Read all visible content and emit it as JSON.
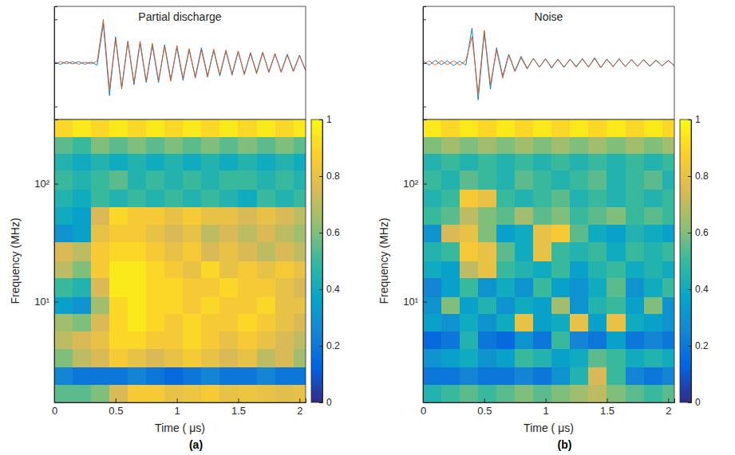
{
  "chart_data": [
    {
      "type": "scalogram",
      "label": "(a)",
      "waveform": {
        "type": "line",
        "title": "Partial discharge",
        "x": [
          0,
          0.05,
          0.1,
          0.15,
          0.2,
          0.25,
          0.3,
          0.35,
          0.4,
          0.45,
          0.5,
          0.55,
          0.6,
          0.65,
          0.7,
          0.75,
          0.8,
          0.85,
          0.9,
          0.95,
          1,
          1.05,
          1.1,
          1.15,
          1.2,
          1.25,
          1.3,
          1.35,
          1.4,
          1.45,
          1.5,
          1.55,
          1.6,
          1.65,
          1.7,
          1.75,
          1.8,
          1.85,
          1.9,
          1.95,
          2,
          2.05
        ],
        "xlim": [
          0,
          2.05
        ],
        "ylim": [
          -1.3,
          1.3
        ],
        "yticks": [
          -1,
          0,
          1
        ],
        "tick_labels": false,
        "series": [
          {
            "color": "#0072bd",
            "values": [
              0.02,
              -0.03,
              0.03,
              -0.02,
              0.03,
              -0.03,
              0.02,
              -0.05,
              0.9,
              -0.75,
              0.6,
              -0.55,
              0.5,
              -0.5,
              0.45,
              -0.45,
              0.4,
              -0.45,
              0.42,
              -0.38,
              0.35,
              -0.4,
              0.3,
              -0.32,
              0.35,
              -0.3,
              0.28,
              -0.3,
              0.27,
              -0.28,
              0.25,
              -0.25,
              0.24,
              -0.22,
              0.25,
              -0.22,
              0.2,
              -0.2,
              0.2,
              -0.18,
              0.18,
              -0.17
            ]
          },
          {
            "color": "#d95319",
            "values": [
              -0.02,
              0.03,
              -0.02,
              0.03,
              -0.03,
              0.02,
              -0.02,
              0.04,
              1.0,
              -0.6,
              0.55,
              -0.6,
              0.48,
              -0.45,
              0.5,
              -0.42,
              0.45,
              -0.4,
              0.38,
              -0.42,
              0.4,
              -0.35,
              0.33,
              -0.35,
              0.3,
              -0.33,
              0.32,
              -0.27,
              0.3,
              -0.25,
              0.28,
              -0.27,
              0.22,
              -0.25,
              0.23,
              -0.2,
              0.22,
              -0.22,
              0.18,
              -0.2,
              0.17,
              -0.18
            ]
          }
        ]
      },
      "heatmap": {
        "type": "heatmap",
        "xlabel": "Time ( μs)",
        "ylabel": "Frequency (MHz)",
        "xlim": [
          0,
          2.05
        ],
        "xticks": [
          0,
          0.5,
          1,
          1.5,
          2
        ],
        "ylim": [
          1.4,
          350
        ],
        "yticks": [
          {
            "value": 10,
            "label": "10¹"
          },
          {
            "value": 100,
            "label": "10²"
          }
        ],
        "log": "y",
        "time_edges": [
          0,
          0.15,
          0.3,
          0.45,
          0.6,
          0.75,
          0.9,
          1.05,
          1.2,
          1.35,
          1.5,
          1.65,
          1.8,
          1.95,
          2.05
        ],
        "frequency_edges": [
          1.4,
          2,
          2.8,
          4,
          5.6,
          8,
          11,
          16,
          22,
          32,
          45,
          64,
          90,
          130,
          180,
          250,
          350
        ],
        "cells": [
          [
            0.55,
            0.55,
            0.6,
            0.75,
            0.85,
            0.85,
            0.8,
            0.82,
            0.85,
            0.8,
            0.82,
            0.8,
            0.78,
            0.8
          ],
          [
            0.25,
            0.2,
            0.2,
            0.2,
            0.25,
            0.2,
            0.15,
            0.2,
            0.25,
            0.2,
            0.2,
            0.25,
            0.2,
            0.2
          ],
          [
            0.6,
            0.7,
            0.75,
            0.85,
            0.8,
            0.75,
            0.8,
            0.85,
            0.8,
            0.75,
            0.8,
            0.7,
            0.75,
            0.65
          ],
          [
            0.7,
            0.75,
            0.8,
            0.9,
            0.9,
            0.85,
            0.85,
            0.9,
            0.85,
            0.8,
            0.85,
            0.8,
            0.75,
            0.7
          ],
          [
            0.65,
            0.6,
            0.75,
            0.9,
            0.95,
            0.9,
            0.85,
            0.9,
            0.85,
            0.85,
            0.9,
            0.85,
            0.8,
            0.75
          ],
          [
            0.35,
            0.3,
            0.65,
            0.9,
            0.95,
            0.9,
            0.9,
            0.85,
            0.9,
            0.85,
            0.85,
            0.9,
            0.8,
            0.8
          ],
          [
            0.5,
            0.45,
            0.75,
            0.95,
            0.95,
            0.9,
            0.9,
            0.85,
            0.85,
            0.9,
            0.85,
            0.85,
            0.8,
            0.75
          ],
          [
            0.7,
            0.6,
            0.85,
            0.95,
            0.95,
            0.9,
            0.85,
            0.8,
            0.9,
            0.8,
            0.85,
            0.8,
            0.85,
            0.8
          ],
          [
            0.75,
            0.7,
            0.85,
            0.9,
            0.9,
            0.85,
            0.8,
            0.85,
            0.75,
            0.8,
            0.75,
            0.7,
            0.75,
            0.7
          ],
          [
            0.3,
            0.35,
            0.8,
            0.85,
            0.85,
            0.8,
            0.75,
            0.8,
            0.7,
            0.75,
            0.7,
            0.75,
            0.7,
            0.65
          ],
          [
            0.4,
            0.35,
            0.75,
            0.9,
            0.85,
            0.85,
            0.8,
            0.85,
            0.8,
            0.8,
            0.75,
            0.8,
            0.75,
            0.7
          ],
          [
            0.45,
            0.4,
            0.5,
            0.45,
            0.5,
            0.45,
            0.5,
            0.45,
            0.5,
            0.45,
            0.4,
            0.5,
            0.45,
            0.5
          ],
          [
            0.5,
            0.45,
            0.5,
            0.55,
            0.45,
            0.5,
            0.45,
            0.5,
            0.45,
            0.5,
            0.5,
            0.45,
            0.5,
            0.45
          ],
          [
            0.45,
            0.4,
            0.45,
            0.4,
            0.45,
            0.4,
            0.45,
            0.4,
            0.45,
            0.4,
            0.45,
            0.4,
            0.45,
            0.4
          ],
          [
            0.55,
            0.5,
            0.6,
            0.55,
            0.6,
            0.55,
            0.6,
            0.55,
            0.6,
            0.55,
            0.6,
            0.55,
            0.6,
            0.55
          ],
          [
            0.9,
            0.95,
            0.9,
            0.95,
            0.9,
            0.95,
            0.9,
            0.95,
            0.9,
            0.95,
            0.9,
            0.95,
            0.9,
            0.95
          ]
        ],
        "colorbar": {
          "range": [
            0,
            1
          ],
          "ticks": [
            0,
            0.2,
            0.4,
            0.6,
            0.8,
            1
          ]
        }
      }
    },
    {
      "type": "scalogram",
      "label": "(b)",
      "waveform": {
        "type": "line",
        "title": "Noise",
        "x": [
          0,
          0.05,
          0.1,
          0.15,
          0.2,
          0.25,
          0.3,
          0.35,
          0.4,
          0.45,
          0.5,
          0.55,
          0.6,
          0.65,
          0.7,
          0.75,
          0.8,
          0.85,
          0.9,
          0.95,
          1,
          1.05,
          1.1,
          1.15,
          1.2,
          1.25,
          1.3,
          1.35,
          1.4,
          1.45,
          1.5,
          1.55,
          1.6,
          1.65,
          1.7,
          1.75,
          1.8,
          1.85,
          1.9,
          1.95,
          2,
          2.05
        ],
        "xlim": [
          0,
          2.05
        ],
        "ylim": [
          -1.3,
          1.3
        ],
        "yticks": [
          -1,
          0,
          1
        ],
        "tick_labels": false,
        "series": [
          {
            "color": "#0072bd",
            "values": [
              0.05,
              -0.05,
              0.06,
              -0.04,
              0.05,
              -0.06,
              0.04,
              -0.05,
              0.8,
              -0.85,
              0.7,
              -0.6,
              0.35,
              -0.3,
              0.2,
              -0.18,
              0.15,
              -0.12,
              0.1,
              -0.1,
              0.09,
              -0.12,
              0.08,
              -0.1,
              0.09,
              -0.08,
              0.1,
              -0.09,
              0.12,
              -0.1,
              0.09,
              -0.08,
              0.1,
              -0.09,
              0.08,
              -0.07,
              0.07,
              -0.08,
              0.06,
              -0.07,
              0.06,
              -0.06
            ]
          },
          {
            "color": "#d95319",
            "values": [
              -0.04,
              0.05,
              -0.05,
              0.05,
              -0.04,
              0.05,
              -0.05,
              0.06,
              0.6,
              -0.7,
              0.75,
              -0.5,
              0.3,
              -0.35,
              0.18,
              -0.2,
              0.12,
              -0.14,
              0.11,
              -0.09,
              0.1,
              -0.1,
              0.09,
              -0.09,
              0.08,
              -0.1,
              0.09,
              -0.1,
              0.1,
              -0.11,
              0.08,
              -0.09,
              0.09,
              -0.08,
              0.07,
              -0.08,
              0.08,
              -0.07,
              0.07,
              -0.06,
              0.05,
              -0.06
            ]
          }
        ]
      },
      "heatmap": {
        "type": "heatmap",
        "xlabel": "Time ( μs)",
        "ylabel": "Frequency (MHz)",
        "xlim": [
          0,
          2.05
        ],
        "xticks": [
          0,
          0.5,
          1,
          1.5,
          2
        ],
        "ylim": [
          1.4,
          350
        ],
        "yticks": [
          {
            "value": 10,
            "label": "10¹"
          },
          {
            "value": 100,
            "label": "10²"
          }
        ],
        "log": "y",
        "time_edges": [
          0,
          0.15,
          0.3,
          0.45,
          0.6,
          0.75,
          0.9,
          1.05,
          1.2,
          1.35,
          1.5,
          1.65,
          1.8,
          1.95,
          2.05
        ],
        "frequency_edges": [
          1.4,
          2,
          2.8,
          4,
          5.6,
          8,
          11,
          16,
          22,
          32,
          45,
          64,
          90,
          130,
          180,
          250,
          350
        ],
        "cells": [
          [
            0.45,
            0.5,
            0.55,
            0.5,
            0.55,
            0.6,
            0.55,
            0.6,
            0.65,
            0.7,
            0.6,
            0.55,
            0.5,
            0.55
          ],
          [
            0.2,
            0.2,
            0.25,
            0.2,
            0.2,
            0.25,
            0.2,
            0.3,
            0.45,
            0.75,
            0.5,
            0.25,
            0.2,
            0.25
          ],
          [
            0.3,
            0.35,
            0.4,
            0.3,
            0.35,
            0.5,
            0.45,
            0.35,
            0.4,
            0.55,
            0.5,
            0.4,
            0.45,
            0.4
          ],
          [
            0.15,
            0.2,
            0.45,
            0.2,
            0.15,
            0.3,
            0.2,
            0.5,
            0.25,
            0.2,
            0.35,
            0.2,
            0.25,
            0.2
          ],
          [
            0.35,
            0.3,
            0.4,
            0.3,
            0.4,
            0.8,
            0.35,
            0.4,
            0.8,
            0.35,
            0.8,
            0.4,
            0.35,
            0.3
          ],
          [
            0.3,
            0.6,
            0.35,
            0.45,
            0.3,
            0.4,
            0.35,
            0.65,
            0.3,
            0.45,
            0.5,
            0.35,
            0.6,
            0.3
          ],
          [
            0.25,
            0.35,
            0.5,
            0.3,
            0.4,
            0.3,
            0.5,
            0.35,
            0.3,
            0.4,
            0.55,
            0.3,
            0.4,
            0.5
          ],
          [
            0.4,
            0.35,
            0.7,
            0.8,
            0.5,
            0.45,
            0.4,
            0.5,
            0.35,
            0.45,
            0.5,
            0.4,
            0.45,
            0.4
          ],
          [
            0.45,
            0.5,
            0.85,
            0.8,
            0.55,
            0.4,
            0.8,
            0.5,
            0.45,
            0.5,
            0.4,
            0.5,
            0.45,
            0.5
          ],
          [
            0.3,
            0.75,
            0.8,
            0.6,
            0.35,
            0.4,
            0.8,
            0.85,
            0.55,
            0.4,
            0.35,
            0.45,
            0.4,
            0.35
          ],
          [
            0.5,
            0.55,
            0.7,
            0.6,
            0.55,
            0.65,
            0.55,
            0.6,
            0.5,
            0.55,
            0.6,
            0.5,
            0.55,
            0.5
          ],
          [
            0.45,
            0.5,
            0.85,
            0.8,
            0.5,
            0.45,
            0.5,
            0.55,
            0.45,
            0.5,
            0.45,
            0.5,
            0.45,
            0.5
          ],
          [
            0.5,
            0.45,
            0.55,
            0.5,
            0.45,
            0.55,
            0.5,
            0.45,
            0.5,
            0.55,
            0.45,
            0.5,
            0.55,
            0.45
          ],
          [
            0.45,
            0.5,
            0.45,
            0.5,
            0.45,
            0.5,
            0.45,
            0.5,
            0.45,
            0.5,
            0.45,
            0.5,
            0.45,
            0.5
          ],
          [
            0.6,
            0.65,
            0.6,
            0.65,
            0.6,
            0.65,
            0.6,
            0.65,
            0.6,
            0.65,
            0.6,
            0.65,
            0.6,
            0.65
          ],
          [
            0.95,
            0.9,
            0.95,
            0.9,
            0.95,
            0.9,
            0.95,
            0.9,
            0.95,
            0.9,
            0.95,
            0.9,
            0.95,
            0.9
          ]
        ],
        "colorbar": {
          "range": [
            0,
            1
          ],
          "ticks": [
            0,
            0.2,
            0.4,
            0.6,
            0.8,
            1
          ]
        }
      }
    }
  ]
}
